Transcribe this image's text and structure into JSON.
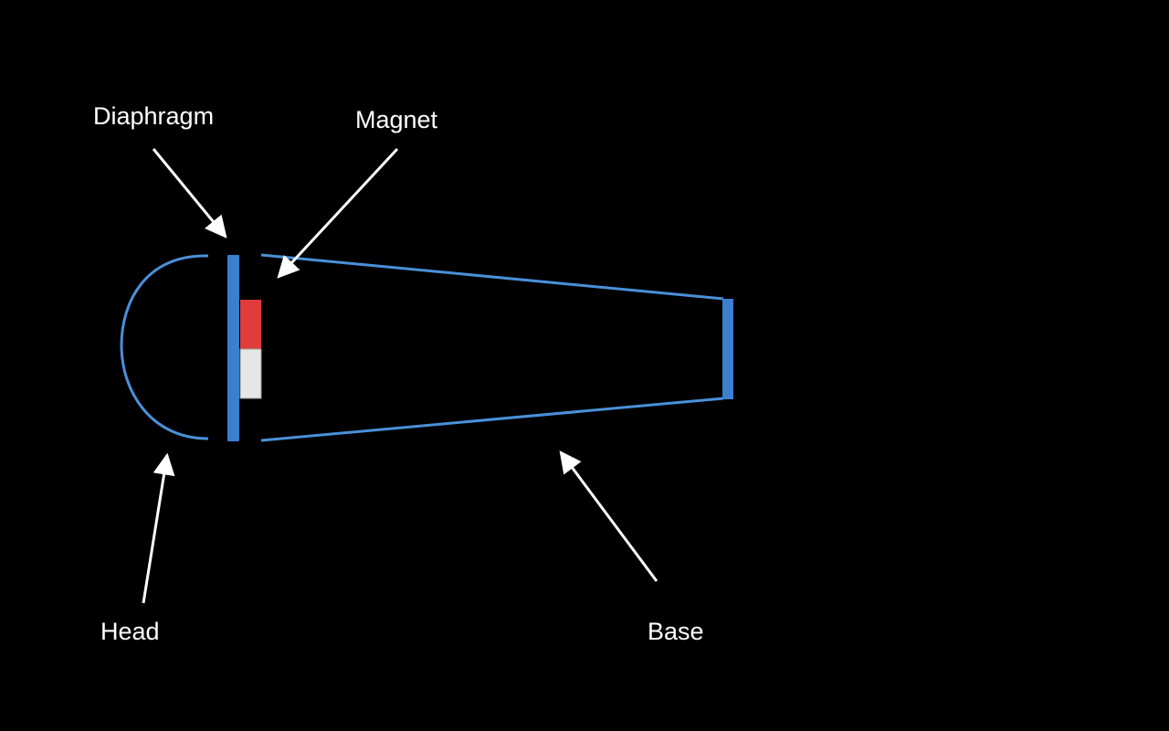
{
  "labels": {
    "diaphragm": "Diaphragm",
    "magnet": "Magnet",
    "head": "Head",
    "base": "Base"
  },
  "colors": {
    "background": "#000000",
    "outline": "#4a90d9",
    "text": "#ffffff",
    "arrow": "#ffffff",
    "magnet_north": "#e03c3c",
    "magnet_south": "#e6e6e6"
  }
}
